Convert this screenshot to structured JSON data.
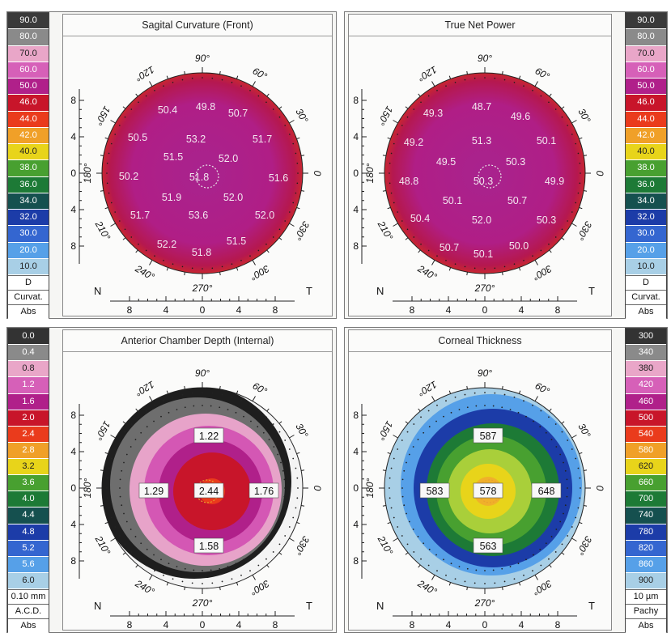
{
  "window_top_border": "",
  "panels": [
    {
      "id": "sagittal",
      "title": "Sagital Curvature (Front)",
      "legend_side": "left",
      "legend": [
        {
          "label": "90.0",
          "color": "#3a3a3a"
        },
        {
          "label": "80.0",
          "color": "#8a8a8a"
        },
        {
          "label": "70.0",
          "color": "#e9a6c8"
        },
        {
          "label": "60.0",
          "color": "#d660b8"
        },
        {
          "label": "50.0",
          "color": "#b0208a"
        },
        {
          "label": "46.0",
          "color": "#c8152a"
        },
        {
          "label": "44.0",
          "color": "#ea3b1c"
        },
        {
          "label": "42.0",
          "color": "#f0a028"
        },
        {
          "label": "40.0",
          "color": "#e8d41a"
        },
        {
          "label": "38.0",
          "color": "#48a030"
        },
        {
          "label": "36.0",
          "color": "#1d7a36"
        },
        {
          "label": "34.0",
          "color": "#15504f"
        },
        {
          "label": "32.0",
          "color": "#1c3ca8"
        },
        {
          "label": "30.0",
          "color": "#3466d0"
        },
        {
          "label": "20.0",
          "color": "#56a0e8"
        },
        {
          "label": "10.0",
          "color": "#a8cfe6"
        }
      ],
      "legend_footer": [
        "D",
        "Curvat.",
        "Abs"
      ],
      "map_style": "sagittal",
      "values": [
        {
          "t": "50.4",
          "x": -43,
          "y": -78
        },
        {
          "t": "49.8",
          "x": 4,
          "y": -82
        },
        {
          "t": "50.7",
          "x": 44,
          "y": -74
        },
        {
          "t": "50.5",
          "x": -80,
          "y": -44
        },
        {
          "t": "53.2",
          "x": -8,
          "y": -42
        },
        {
          "t": "51.7",
          "x": 74,
          "y": -42
        },
        {
          "t": "51.5",
          "x": -36,
          "y": -20
        },
        {
          "t": "52.0",
          "x": 32,
          "y": -18
        },
        {
          "t": "50.2",
          "x": -91,
          "y": 4
        },
        {
          "t": "51.8",
          "x": -4,
          "y": 5
        },
        {
          "t": "51.6",
          "x": 94,
          "y": 6
        },
        {
          "t": "51.9",
          "x": -38,
          "y": 30
        },
        {
          "t": "52.0",
          "x": 38,
          "y": 30
        },
        {
          "t": "51.7",
          "x": -77,
          "y": 52
        },
        {
          "t": "53.6",
          "x": -5,
          "y": 52
        },
        {
          "t": "52.0",
          "x": 77,
          "y": 52
        },
        {
          "t": "52.2",
          "x": -44,
          "y": 88
        },
        {
          "t": "51.5",
          "x": 42,
          "y": 84
        },
        {
          "t": "51.8",
          "x": -1,
          "y": 98
        }
      ],
      "angles": [
        "90°",
        "60°",
        "30°",
        "0",
        "330°",
        "300°",
        "270°",
        "240°",
        "210°",
        "180°",
        "150°",
        "120°"
      ],
      "side_labels": {
        "left": "N",
        "right": "T"
      },
      "y_ticks": [
        "8",
        "4",
        "0",
        "4",
        "8"
      ],
      "x_ticks": [
        "8",
        "4",
        "0",
        "4",
        "8"
      ]
    },
    {
      "id": "truenet",
      "title": "True Net Power",
      "legend_side": "right",
      "legend": [
        {
          "label": "90.0",
          "color": "#3a3a3a"
        },
        {
          "label": "80.0",
          "color": "#8a8a8a"
        },
        {
          "label": "70.0",
          "color": "#e9a6c8"
        },
        {
          "label": "60.0",
          "color": "#d660b8"
        },
        {
          "label": "50.0",
          "color": "#b0208a"
        },
        {
          "label": "46.0",
          "color": "#c8152a"
        },
        {
          "label": "44.0",
          "color": "#ea3b1c"
        },
        {
          "label": "42.0",
          "color": "#f0a028"
        },
        {
          "label": "40.0",
          "color": "#e8d41a"
        },
        {
          "label": "38.0",
          "color": "#48a030"
        },
        {
          "label": "36.0",
          "color": "#1d7a36"
        },
        {
          "label": "34.0",
          "color": "#15504f"
        },
        {
          "label": "32.0",
          "color": "#1c3ca8"
        },
        {
          "label": "30.0",
          "color": "#3466d0"
        },
        {
          "label": "20.0",
          "color": "#56a0e8"
        },
        {
          "label": "10.0",
          "color": "#a8cfe6"
        }
      ],
      "legend_footer": [
        "D",
        "Curvat.",
        "Abs"
      ],
      "map_style": "truenet",
      "values": [
        {
          "t": "49.3",
          "x": -64,
          "y": -74
        },
        {
          "t": "48.7",
          "x": -4,
          "y": -82
        },
        {
          "t": "49.6",
          "x": 44,
          "y": -70
        },
        {
          "t": "49.2",
          "x": -88,
          "y": -38
        },
        {
          "t": "51.3",
          "x": -4,
          "y": -40
        },
        {
          "t": "50.1",
          "x": 76,
          "y": -40
        },
        {
          "t": "49.5",
          "x": -48,
          "y": -14
        },
        {
          "t": "50.3",
          "x": 38,
          "y": -14
        },
        {
          "t": "48.8",
          "x": -94,
          "y": 10
        },
        {
          "t": "50.3",
          "x": -2,
          "y": 10
        },
        {
          "t": "49.9",
          "x": 86,
          "y": 10
        },
        {
          "t": "50.1",
          "x": -40,
          "y": 34
        },
        {
          "t": "50.7",
          "x": 40,
          "y": 34
        },
        {
          "t": "50.4",
          "x": -80,
          "y": 56
        },
        {
          "t": "52.0",
          "x": -4,
          "y": 58
        },
        {
          "t": "50.3",
          "x": 76,
          "y": 58
        },
        {
          "t": "50.7",
          "x": -44,
          "y": 92
        },
        {
          "t": "50.0",
          "x": 42,
          "y": 90
        },
        {
          "t": "50.1",
          "x": -2,
          "y": 100
        }
      ],
      "angles": [
        "90°",
        "60°",
        "30°",
        "0",
        "330°",
        "300°",
        "270°",
        "240°",
        "210°",
        "180°",
        "150°",
        "120°"
      ],
      "side_labels": {
        "left": "N",
        "right": "T"
      },
      "y_ticks": [
        "8",
        "4",
        "0",
        "4",
        "8"
      ],
      "x_ticks": [
        "8",
        "4",
        "0",
        "4",
        "8"
      ]
    },
    {
      "id": "acd",
      "title": "Anterior Chamber Depth (Internal)",
      "legend_side": "left",
      "legend": [
        {
          "label": "0.0",
          "color": "#333333"
        },
        {
          "label": "0.4",
          "color": "#8a8a8a"
        },
        {
          "label": "0.8",
          "color": "#e9a6c8"
        },
        {
          "label": "1.2",
          "color": "#d660b8"
        },
        {
          "label": "1.6",
          "color": "#b0208a"
        },
        {
          "label": "2.0",
          "color": "#c8152a"
        },
        {
          "label": "2.4",
          "color": "#ea3b1c"
        },
        {
          "label": "2.8",
          "color": "#f0a028"
        },
        {
          "label": "3.2",
          "color": "#e8d41a"
        },
        {
          "label": "3.6",
          "color": "#48a030"
        },
        {
          "label": "4.0",
          "color": "#1d7a36"
        },
        {
          "label": "4.4",
          "color": "#15504f"
        },
        {
          "label": "4.8",
          "color": "#1c3ca8"
        },
        {
          "label": "5.2",
          "color": "#3466d0"
        },
        {
          "label": "5.6",
          "color": "#56a0e8"
        },
        {
          "label": "6.0",
          "color": "#a8cfe6"
        }
      ],
      "legend_footer": [
        "0.10 mm",
        "A.C.D.",
        "Abs"
      ],
      "map_style": "acd",
      "values": [
        {
          "t": "1.22",
          "x": 8,
          "y": -64,
          "box": true
        },
        {
          "t": "1.29",
          "x": -60,
          "y": 4,
          "box": true
        },
        {
          "t": "2.44",
          "x": 8,
          "y": 4,
          "box": true
        },
        {
          "t": "1.76",
          "x": 76,
          "y": 4,
          "box": true
        },
        {
          "t": "1.58",
          "x": 8,
          "y": 72,
          "box": true
        }
      ],
      "angles": [
        "90°",
        "60°",
        "30°",
        "0",
        "330°",
        "300°",
        "270°",
        "240°",
        "210°",
        "180°",
        "150°",
        "120°"
      ],
      "side_labels": {
        "left": "N",
        "right": "T"
      },
      "y_ticks": [
        "8",
        "4",
        "0",
        "4",
        "8"
      ],
      "x_ticks": [
        "8",
        "4",
        "0",
        "4",
        "8"
      ]
    },
    {
      "id": "pachy",
      "title": "Corneal Thickness",
      "legend_side": "right",
      "legend": [
        {
          "label": "300",
          "color": "#333333"
        },
        {
          "label": "340",
          "color": "#8a8a8a"
        },
        {
          "label": "380",
          "color": "#e9a6c8"
        },
        {
          "label": "420",
          "color": "#d660b8"
        },
        {
          "label": "460",
          "color": "#b0208a"
        },
        {
          "label": "500",
          "color": "#c8152a"
        },
        {
          "label": "540",
          "color": "#ea3b1c"
        },
        {
          "label": "580",
          "color": "#f0a028"
        },
        {
          "label": "620",
          "color": "#e8d41a"
        },
        {
          "label": "660",
          "color": "#48a030"
        },
        {
          "label": "700",
          "color": "#1d7a36"
        },
        {
          "label": "740",
          "color": "#15504f"
        },
        {
          "label": "780",
          "color": "#1c3ca8"
        },
        {
          "label": "820",
          "color": "#3466d0"
        },
        {
          "label": "860",
          "color": "#56a0e8"
        },
        {
          "label": "900",
          "color": "#a8cfe6"
        }
      ],
      "legend_footer": [
        "10 µm",
        "Pachy",
        "Abs"
      ],
      "map_style": "pachy",
      "values": [
        {
          "t": "587",
          "x": 4,
          "y": -64,
          "box": true
        },
        {
          "t": "583",
          "x": -62,
          "y": 4,
          "box": true
        },
        {
          "t": "578",
          "x": 4,
          "y": 4,
          "box": true
        },
        {
          "t": "648",
          "x": 76,
          "y": 4,
          "box": true
        },
        {
          "t": "563",
          "x": 4,
          "y": 72,
          "box": true
        }
      ],
      "angles": [
        "90°",
        "60°",
        "30°",
        "0",
        "330°",
        "300°",
        "270°",
        "240°",
        "210°",
        "180°",
        "150°",
        "120°"
      ],
      "side_labels": {
        "left": "N",
        "right": "T"
      },
      "y_ticks": [
        "8",
        "4",
        "0",
        "4",
        "8"
      ],
      "x_ticks": [
        "8",
        "4",
        "0",
        "4",
        "8"
      ]
    }
  ]
}
